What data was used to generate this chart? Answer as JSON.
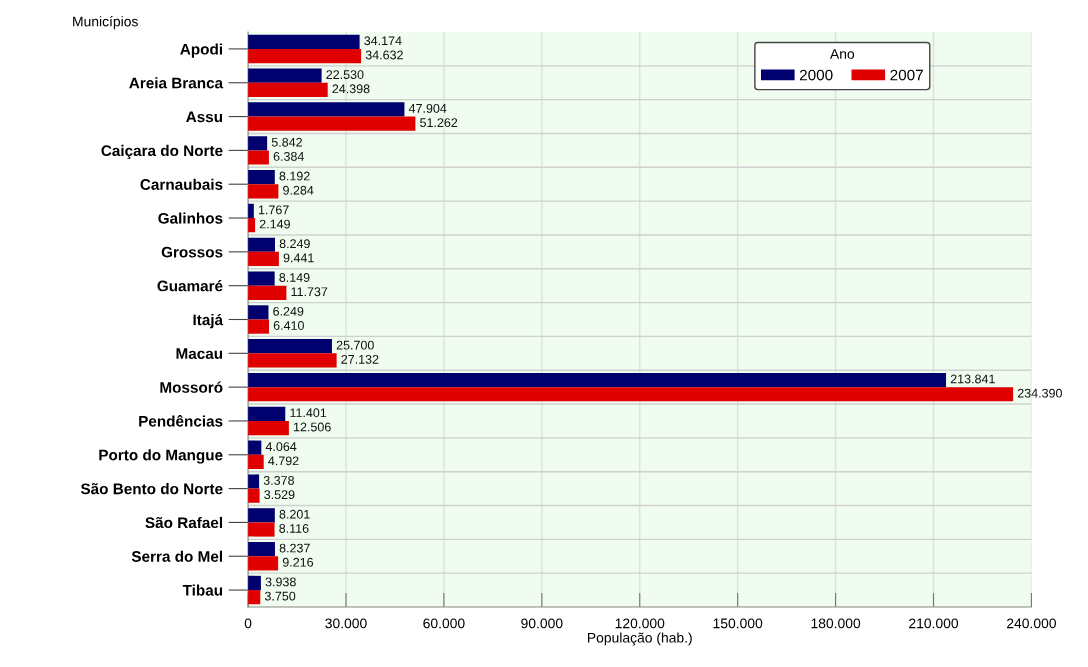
{
  "chart_data": {
    "type": "bar",
    "orientation": "horizontal",
    "xlabel": "População (hab.)",
    "ylabel": "Municípios",
    "legend_title": "Ano",
    "categories": [
      "Apodi",
      "Areia Branca",
      "Assu",
      "Caiçara do Norte",
      "Carnaubais",
      "Galinhos",
      "Grossos",
      "Guamaré",
      "Itajá",
      "Macau",
      "Mossoró",
      "Pendências",
      "Porto do Mangue",
      "São Bento do Norte",
      "São Rafael",
      "Serra do Mel",
      "Tibau"
    ],
    "series": [
      {
        "name": "2000",
        "color": "#00006e",
        "values": [
          34174,
          22530,
          47904,
          5842,
          8192,
          1767,
          8249,
          8149,
          6249,
          25700,
          213841,
          11401,
          4064,
          3378,
          8201,
          8237,
          3938
        ],
        "value_labels": [
          "34.174",
          "22.530",
          "47.904",
          "5.842",
          "8.192",
          "1.767",
          "8.249",
          "8.149",
          "6.249",
          "25.700",
          "213.841",
          "11.401",
          "4.064",
          "3.378",
          "8.201",
          "8.237",
          "3.938"
        ]
      },
      {
        "name": "2007",
        "color": "#e00000",
        "values": [
          34632,
          24398,
          51262,
          6384,
          9284,
          2149,
          9441,
          11737,
          6410,
          27132,
          234390,
          12506,
          4792,
          3529,
          8116,
          9216,
          3750
        ],
        "value_labels": [
          "34.632",
          "24.398",
          "51.262",
          "6.384",
          "9.284",
          "2.149",
          "9.441",
          "11.737",
          "6.410",
          "27.132",
          "234.390",
          "12.506",
          "4.792",
          "3.529",
          "8.116",
          "9.216",
          "3.750"
        ]
      }
    ],
    "xlim": [
      0,
      240000
    ],
    "xticks": [
      0,
      {
        "value": 30000,
        "label": "30.000"
      },
      {
        "value": 60000,
        "label": "60.000"
      },
      {
        "value": 90000,
        "label": "90.000"
      },
      {
        "value": 120000,
        "label": "120.000"
      },
      {
        "value": 150000,
        "label": "150.000"
      },
      {
        "value": 180000,
        "label": "180.000"
      },
      {
        "value": 210000,
        "label": "210.000"
      },
      {
        "value": 240000,
        "label": "240.000"
      }
    ],
    "grid": true,
    "legend": "top right"
  }
}
